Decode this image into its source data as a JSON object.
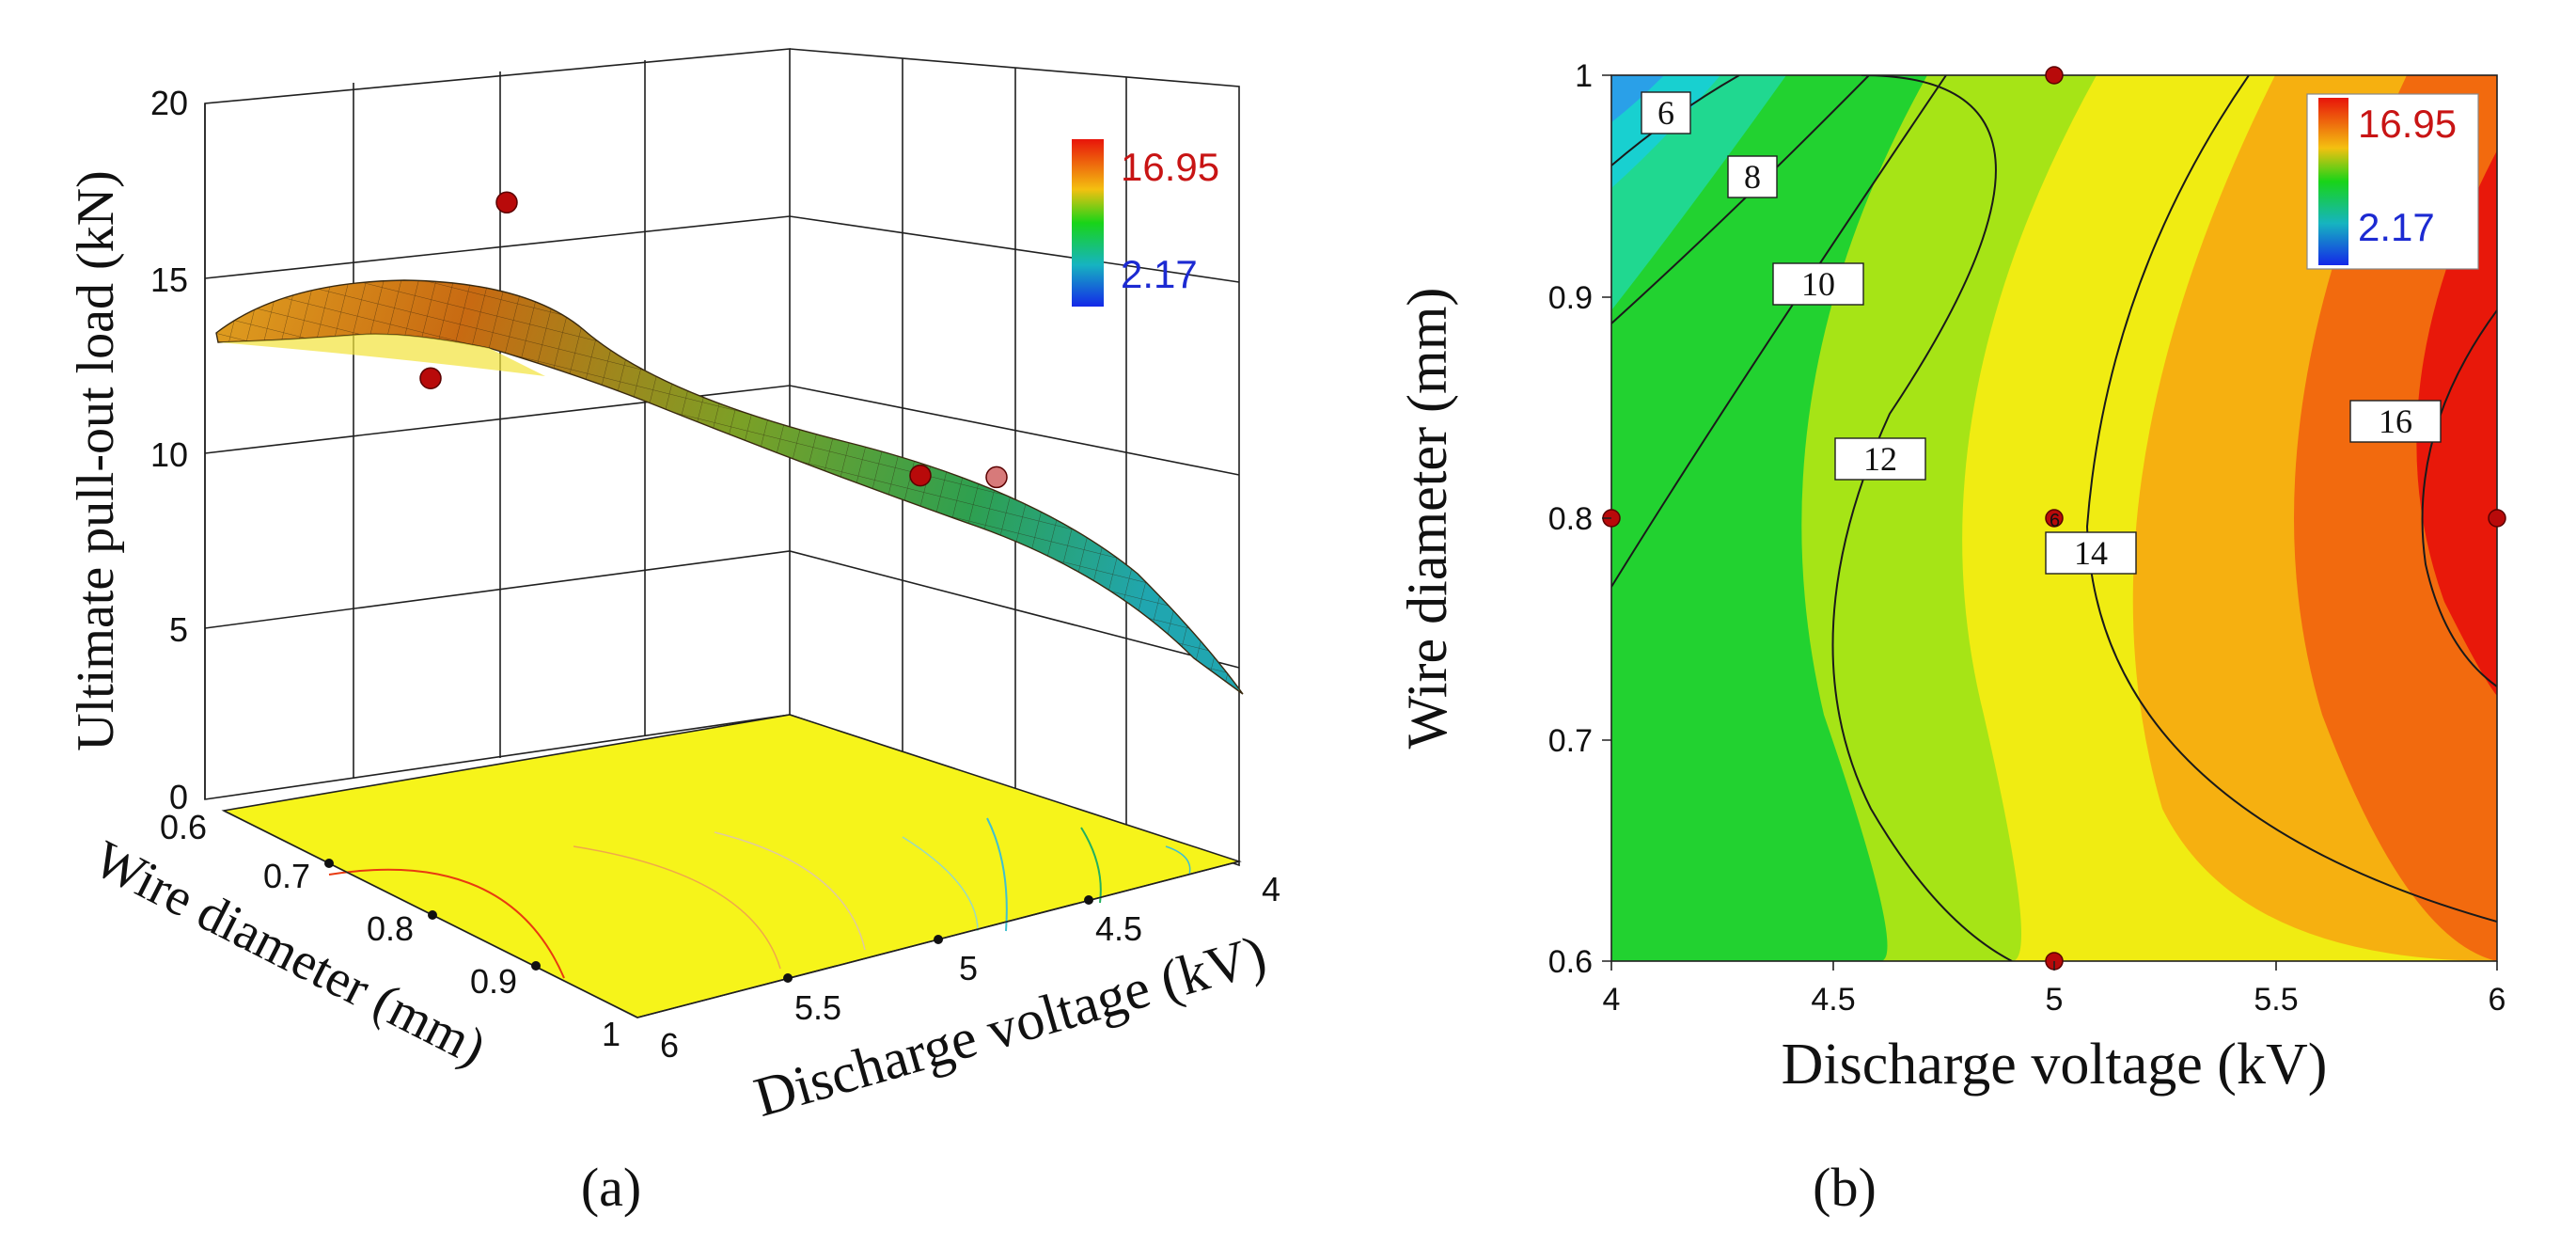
{
  "colors": {
    "high": "#e8140a",
    "mid_orange": "#f08a12",
    "mid_yellow": "#f4f212",
    "mid_green": "#16d21a",
    "low_cyan": "#16d8d8",
    "low": "#1428e8",
    "point": "#b80a0a",
    "floor": "#f6f41a",
    "legend_high_text": "#c81414",
    "legend_low_text": "#1c2ad2"
  },
  "chart_data": [
    {
      "type": "surface",
      "panel_label": "(a)",
      "xlabel": "Discharge voltage (kV)",
      "ylabel": "Wire diameter (mm)",
      "zlabel": "Ultimate pull-out load (kN)",
      "xlim": [
        4,
        6
      ],
      "ylim": [
        0.6,
        1
      ],
      "zlim": [
        0,
        20
      ],
      "x_ticks": [
        "4",
        "4.5",
        "5",
        "5.5",
        "6"
      ],
      "y_ticks": [
        "0.6",
        "0.7",
        "0.8",
        "0.9",
        "1"
      ],
      "z_ticks": [
        "0",
        "5",
        "10",
        "15",
        "20"
      ],
      "legend": {
        "max": "16.95",
        "min": "2.17"
      },
      "design_points": [
        {
          "x": 6,
          "y": 0.8,
          "z": 15.4
        },
        {
          "x": 5,
          "y": 0.6,
          "z": 16.1
        },
        {
          "x": 5,
          "y": 1.0,
          "z": 14.2
        },
        {
          "x": 4,
          "y": 0.8,
          "z": 9.8
        }
      ],
      "floor_contours": true
    },
    {
      "type": "contour",
      "panel_label": "(b)",
      "xlabel": "Discharge voltage (kV)",
      "ylabel": "Wire diameter (mm)",
      "xlim": [
        4,
        6
      ],
      "ylim": [
        0.6,
        1
      ],
      "x_ticks": [
        "4",
        "4.5",
        "5",
        "5.5",
        "6"
      ],
      "y_ticks": [
        "0.6",
        "0.7",
        "0.8",
        "0.9",
        "1"
      ],
      "legend": {
        "max": "16.95",
        "min": "2.17"
      },
      "contour_levels": [
        "6",
        "8",
        "10",
        "12",
        "14",
        "16"
      ],
      "center_point_label": "6",
      "design_points": [
        {
          "x": 4,
          "y": 0.8
        },
        {
          "x": 5,
          "y": 1.0
        },
        {
          "x": 5,
          "y": 0.8
        },
        {
          "x": 5,
          "y": 0.6
        },
        {
          "x": 6,
          "y": 0.8
        }
      ]
    }
  ]
}
